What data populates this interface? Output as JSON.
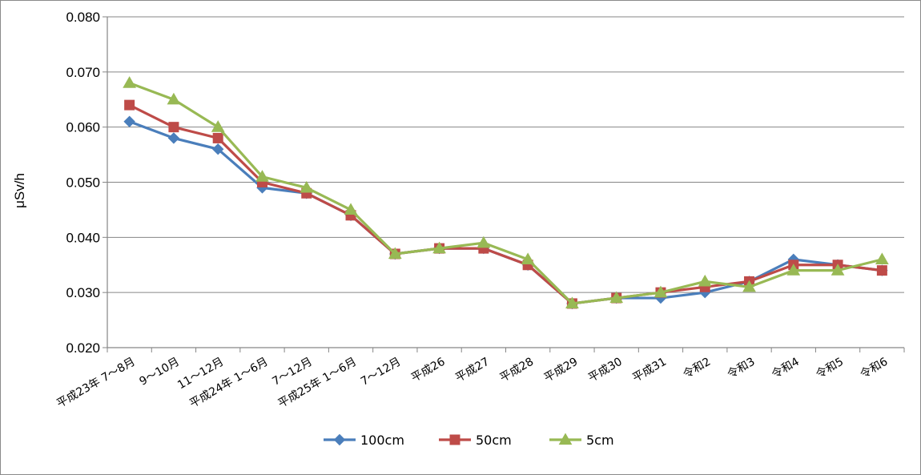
{
  "chart_data": {
    "type": "line",
    "title": "",
    "xlabel": "",
    "ylabel": "μSv/h",
    "ylim": [
      0.02,
      0.08
    ],
    "y_ticks": [
      "0.080",
      "0.070",
      "0.060",
      "0.050",
      "0.040",
      "0.030",
      "0.020"
    ],
    "grid": true,
    "legend_position": "bottom",
    "categories": [
      "平成23年 7～8月",
      "9～10月",
      "11～12月",
      "平成24年 1～6月",
      "7～12月",
      "平成25年 1～6月",
      "7～12月",
      "平成26",
      "平成27",
      "平成28",
      "平成29",
      "平成30",
      "平成31",
      "令和2",
      "令和3",
      "令和4",
      "令和5",
      "令和6"
    ],
    "series": [
      {
        "name": "100cm",
        "color": "#4a7ebb",
        "marker": "diamond",
        "values": [
          0.061,
          0.058,
          0.056,
          0.049,
          0.048,
          0.044,
          0.037,
          0.038,
          0.038,
          0.035,
          0.028,
          0.029,
          0.029,
          0.03,
          0.032,
          0.036,
          0.035,
          0.034
        ]
      },
      {
        "name": "50cm",
        "color": "#be4b48",
        "marker": "square",
        "values": [
          0.064,
          0.06,
          0.058,
          0.05,
          0.048,
          0.044,
          0.037,
          0.038,
          0.038,
          0.035,
          0.028,
          0.029,
          0.03,
          0.031,
          0.032,
          0.035,
          0.035,
          0.034
        ]
      },
      {
        "name": "5cm",
        "color": "#98b954",
        "marker": "triangle",
        "values": [
          0.068,
          0.065,
          0.06,
          0.051,
          0.049,
          0.045,
          0.037,
          0.038,
          0.039,
          0.036,
          0.028,
          0.029,
          0.03,
          0.032,
          0.031,
          0.034,
          0.034,
          0.036
        ]
      }
    ]
  },
  "colors": {
    "grid": "#868686",
    "axis": "#868686"
  }
}
